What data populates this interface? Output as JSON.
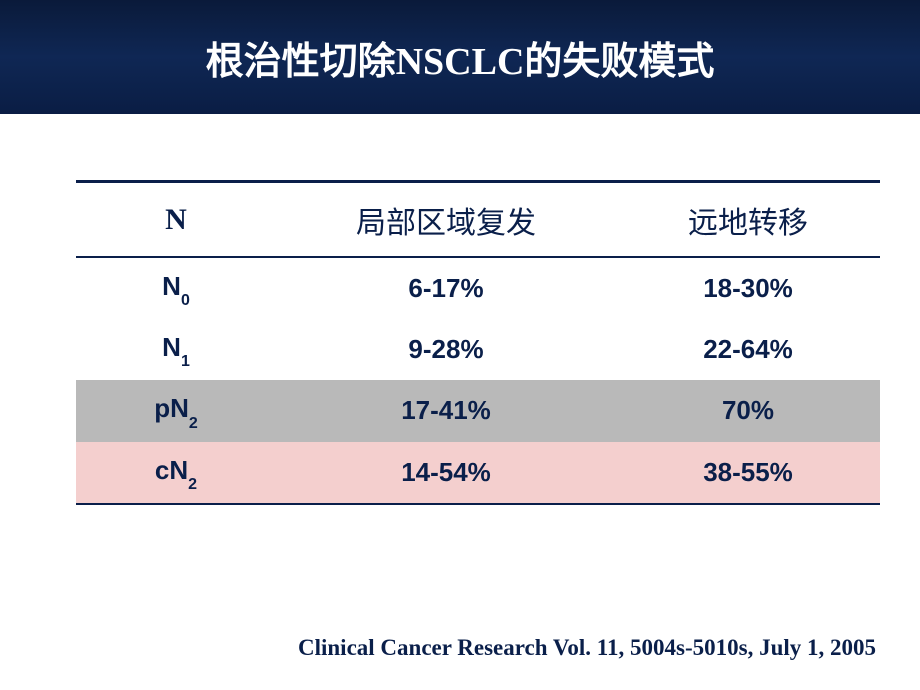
{
  "title": "根治性切除NSCLC的失败模式",
  "table": {
    "columns": [
      "N",
      "局部区域复发",
      "远地转移"
    ],
    "rows": [
      {
        "stage_base": "N",
        "stage_sub": "0",
        "local": "6-17%",
        "distant": "18-30%",
        "row_bg": null
      },
      {
        "stage_base": "N",
        "stage_sub": "1",
        "local": "9-28%",
        "distant": "22-64%",
        "row_bg": null
      },
      {
        "stage_base": "pN",
        "stage_sub": "2",
        "local": "17-41%",
        "distant": "70%",
        "row_bg": "#b9b9b9"
      },
      {
        "stage_base": "cN",
        "stage_sub": "2",
        "local": "14-54%",
        "distant": "38-55%",
        "row_bg": "#f4cfce"
      }
    ],
    "border_color": "#0a1f4a",
    "header_fontsize": 30,
    "cell_fontsize": 26,
    "text_color": "#0a1f4a"
  },
  "citation": "Clinical Cancer Research Vol. 11, 5004s-5010s, July 1, 2005",
  "colors": {
    "title_band_gradient_top": "#0a1a3a",
    "title_band_gradient_mid": "#0f2754",
    "title_band_gradient_bottom": "#0a1d44",
    "title_text": "#ffffff",
    "body_bg": "#ffffff"
  }
}
